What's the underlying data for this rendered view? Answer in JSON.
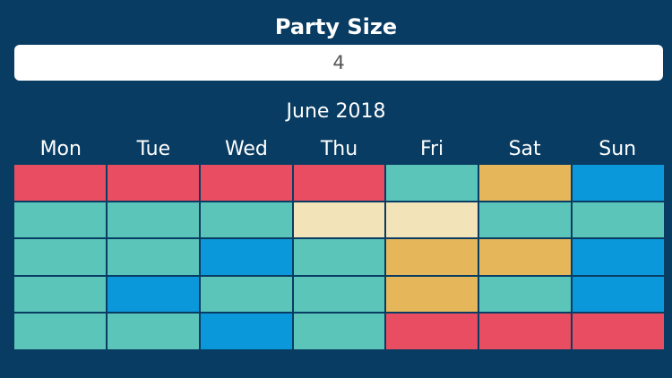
{
  "party": {
    "label": "Party Size",
    "value": "4"
  },
  "calendar": {
    "month_label": "June 2018",
    "weekdays": [
      "Mon",
      "Tue",
      "Wed",
      "Thu",
      "Fri",
      "Sat",
      "Sun"
    ],
    "rows": [
      [
        "red",
        "red",
        "red",
        "red",
        "teal",
        "gold",
        "blue"
      ],
      [
        "teal",
        "teal",
        "teal",
        "cream",
        "cream",
        "teal",
        "teal"
      ],
      [
        "teal",
        "teal",
        "blue",
        "teal",
        "gold",
        "gold",
        "blue"
      ],
      [
        "teal",
        "blue",
        "teal",
        "teal",
        "gold",
        "teal",
        "blue"
      ],
      [
        "teal",
        "teal",
        "blue",
        "teal",
        "red",
        "red",
        "red"
      ]
    ],
    "colors": {
      "red": "#e84d62",
      "teal": "#5cc5ba",
      "gold": "#e6b65a",
      "blue": "#0b98db",
      "cream": "#f3e3b9",
      "background": "#083c63"
    }
  }
}
